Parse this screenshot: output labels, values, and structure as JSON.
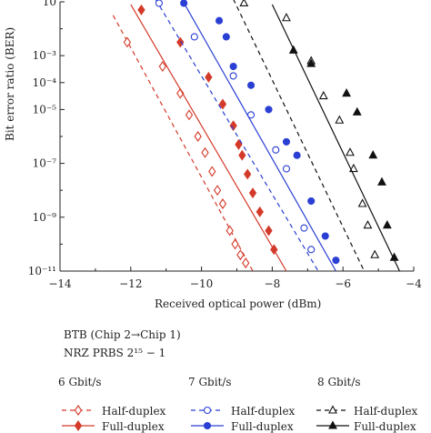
{
  "chart_data": {
    "type": "scatter",
    "xlabel": "Received optical power (dBm)",
    "ylabel": "Bit error ratio (BER)",
    "xlim": [
      -14,
      -4
    ],
    "ylim_log10": [
      -11,
      -1
    ],
    "x_ticks": [
      "−14",
      "−12",
      "−10",
      "−8",
      "−6",
      "−4"
    ],
    "y_ticks": [
      "10",
      "10⁻³",
      "10⁻⁴",
      "10⁻⁵",
      "10⁻⁷",
      "10⁻⁹",
      "10⁻¹¹"
    ],
    "grid": false,
    "series": [
      {
        "name": "6 Gbit/s Half-duplex",
        "color": "#d43a2a",
        "marker": "diamond-open",
        "dash": "5,4",
        "points": [
          [
            -12.1,
            -2.5
          ],
          [
            -11.1,
            -3.4
          ],
          [
            -10.6,
            -4.4
          ],
          [
            -10.35,
            -5.2
          ],
          [
            -10.1,
            -6
          ],
          [
            -9.9,
            -6.6
          ],
          [
            -9.7,
            -7.3
          ],
          [
            -9.55,
            -8
          ],
          [
            -9.4,
            -8.5
          ],
          [
            -9.2,
            -9.5
          ],
          [
            -9.05,
            -10
          ],
          [
            -8.9,
            -10.4
          ],
          [
            -8.75,
            -10.7
          ]
        ],
        "fit": [
          [
            -12.5,
            -1.5
          ],
          [
            -8.55,
            -11
          ]
        ]
      },
      {
        "name": "6 Gbit/s Full-duplex",
        "color": "#d43a2a",
        "marker": "diamond-filled",
        "dash": "",
        "points": [
          [
            -11.7,
            -1.3
          ],
          [
            -10.6,
            -2.5
          ],
          [
            -9.8,
            -3.8
          ],
          [
            -9.4,
            -4.8
          ],
          [
            -9.1,
            -5.6
          ],
          [
            -8.95,
            -6.3
          ],
          [
            -8.85,
            -6.7
          ],
          [
            -8.7,
            -7.4
          ],
          [
            -8.55,
            -8.1
          ],
          [
            -8.35,
            -8.8
          ],
          [
            -8.1,
            -9.5
          ],
          [
            -7.95,
            -10.2
          ]
        ],
        "fit": [
          [
            -12.0,
            -1.1
          ],
          [
            -7.6,
            -11
          ]
        ]
      },
      {
        "name": "7 Gbit/s Half-duplex",
        "color": "#2a3fd4",
        "marker": "circle-open",
        "dash": "5,4",
        "points": [
          [
            -11.2,
            -1.05
          ],
          [
            -10.2,
            -2.3
          ],
          [
            -9.1,
            -3.75
          ],
          [
            -8.6,
            -5.2
          ],
          [
            -7.9,
            -6.5
          ],
          [
            -7.6,
            -7.2
          ],
          [
            -7.1,
            -9.4
          ],
          [
            -6.9,
            -10.2
          ]
        ],
        "fit": [
          [
            -11.3,
            -0.9
          ],
          [
            -6.7,
            -11
          ]
        ]
      },
      {
        "name": "7 Gbit/s Full-duplex",
        "color": "#2a3fd4",
        "marker": "circle-filled",
        "dash": "",
        "points": [
          [
            -10.5,
            -1.05
          ],
          [
            -9.5,
            -1.7
          ],
          [
            -9.3,
            -2.3
          ],
          [
            -9.1,
            -3.4
          ],
          [
            -8.6,
            -4.1
          ],
          [
            -8.1,
            -5.0
          ],
          [
            -7.6,
            -6.2
          ],
          [
            -7.3,
            -6.7
          ],
          [
            -6.9,
            -8.4
          ],
          [
            -6.5,
            -9.7
          ],
          [
            -6.2,
            -10.6
          ]
        ],
        "fit": [
          [
            -10.6,
            -0.8
          ],
          [
            -6.2,
            -11
          ]
        ]
      },
      {
        "name": "8 Gbit/s Half-duplex",
        "color": "#111111",
        "marker": "triangle-open",
        "dash": "5,4",
        "points": [
          [
            -8.8,
            -1.05
          ],
          [
            -7.6,
            -1.6
          ],
          [
            -6.9,
            -3.2
          ],
          [
            -6.55,
            -4.5
          ],
          [
            -6.1,
            -5.4
          ],
          [
            -5.8,
            -6.6
          ],
          [
            -5.7,
            -7.2
          ],
          [
            -5.45,
            -8.5
          ],
          [
            -5.3,
            -9.3
          ],
          [
            -5.1,
            -10.4
          ]
        ],
        "fit": [
          [
            -9.1,
            -0.9
          ],
          [
            -5.4,
            -11
          ]
        ]
      },
      {
        "name": "8 Gbit/s Full-duplex",
        "color": "#111111",
        "marker": "triangle-filled",
        "dash": "",
        "points": [
          [
            -7.4,
            -2.8
          ],
          [
            -6.9,
            -3.3
          ],
          [
            -5.9,
            -4.4
          ],
          [
            -5.6,
            -5.1
          ],
          [
            -5.15,
            -6.7
          ],
          [
            -4.9,
            -7.7
          ],
          [
            -4.75,
            -9.3
          ],
          [
            -4.55,
            -10.5
          ]
        ],
        "fit": [
          [
            -8.0,
            -1.1
          ],
          [
            -4.4,
            -11
          ]
        ]
      }
    ]
  },
  "annotation": {
    "line1": "BTB (Chip 2→Chip 1)",
    "line2": "NRZ PRBS 2¹⁵ − 1"
  },
  "legend": {
    "groups": [
      {
        "title": "6 Gbit/s",
        "half": "Half-duplex",
        "full": "Full-duplex"
      },
      {
        "title": "7 Gbit/s",
        "half": "Half-duplex",
        "full": "Full-duplex"
      },
      {
        "title": "8 Gbit/s",
        "half": "Half-duplex",
        "full": "Full-duplex"
      }
    ]
  }
}
